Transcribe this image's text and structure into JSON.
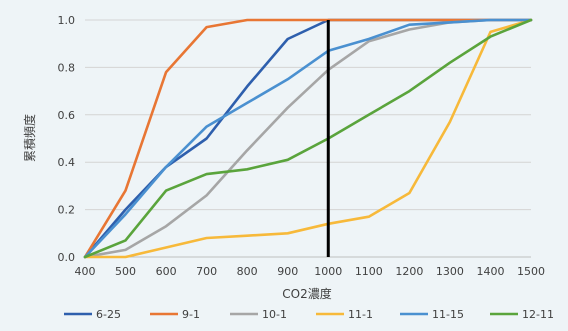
{
  "chart_data": {
    "type": "line",
    "xlabel": "CO2濃度",
    "ylabel": "累積頻度",
    "x": [
      400,
      500,
      600,
      700,
      800,
      900,
      1000,
      1100,
      1200,
      1300,
      1400,
      1500
    ],
    "xlim": [
      400,
      1500
    ],
    "ylim": [
      0,
      1.0
    ],
    "x_ticks": [
      "400",
      "500",
      "600",
      "700",
      "800",
      "900",
      "1000",
      "1100",
      "1200",
      "1300",
      "1400",
      "1500"
    ],
    "y_ticks": [
      "0.0",
      "0.2",
      "0.4",
      "0.6",
      "0.8",
      "1.0"
    ],
    "grid": "horizontal",
    "legend_position": "bottom",
    "vertical_line": {
      "x": 1000,
      "color": "#000000"
    },
    "series": [
      {
        "name": "6-25",
        "color": "#2e5fad",
        "values": [
          0,
          0.2,
          0.38,
          0.5,
          0.72,
          0.92,
          1.0,
          1.0,
          1.0,
          1.0,
          1.0,
          1.0
        ]
      },
      {
        "name": "9-1",
        "color": "#e87634",
        "values": [
          0,
          0.28,
          0.78,
          0.97,
          1.0,
          1.0,
          1.0,
          1.0,
          1.0,
          1.0,
          1.0,
          1.0
        ]
      },
      {
        "name": "10-1",
        "color": "#a6a6a6",
        "values": [
          0,
          0.03,
          0.13,
          0.26,
          0.45,
          0.63,
          0.79,
          0.91,
          0.96,
          0.99,
          1.0,
          1.0
        ]
      },
      {
        "name": "11-1",
        "color": "#f7b93a",
        "values": [
          0,
          0.0,
          0.04,
          0.08,
          0.09,
          0.1,
          0.14,
          0.17,
          0.27,
          0.57,
          0.95,
          1.0
        ]
      },
      {
        "name": "11-15",
        "color": "#4a90d0",
        "values": [
          0,
          0.18,
          0.38,
          0.55,
          0.65,
          0.75,
          0.87,
          0.92,
          0.98,
          0.99,
          1.0,
          1.0
        ]
      },
      {
        "name": "12-11",
        "color": "#5aa43c",
        "values": [
          0,
          0.07,
          0.28,
          0.35,
          0.37,
          0.41,
          0.5,
          0.6,
          0.7,
          0.82,
          0.93,
          1.0
        ]
      }
    ]
  }
}
